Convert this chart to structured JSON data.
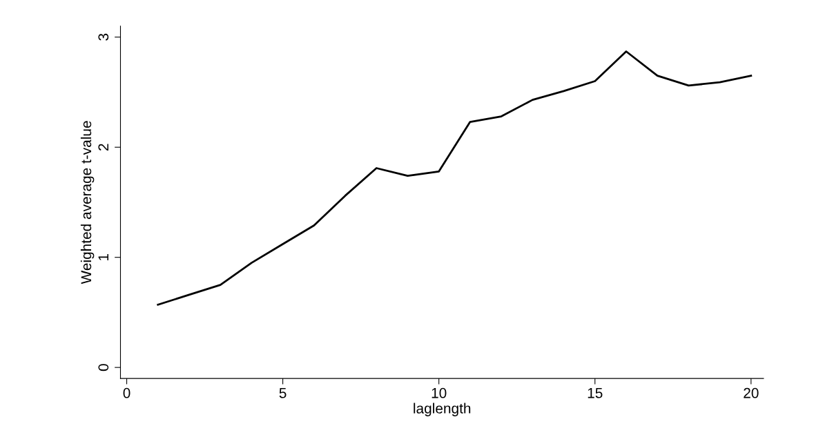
{
  "chart_data": {
    "type": "line",
    "xlabel": "laglength",
    "ylabel": "Weighted average t-value",
    "x": [
      1,
      2,
      3,
      4,
      5,
      6,
      7,
      8,
      9,
      10,
      11,
      12,
      13,
      14,
      15,
      16,
      17,
      18,
      19,
      20
    ],
    "series": [
      {
        "color": "#000000",
        "values": [
          0.57,
          0.66,
          0.75,
          0.95,
          1.12,
          1.29,
          1.56,
          1.81,
          1.74,
          1.78,
          2.23,
          2.28,
          2.43,
          2.51,
          2.6,
          2.87,
          2.65,
          2.56,
          2.59,
          2.65
        ]
      }
    ],
    "xlim": [
      -0.2,
      20.4
    ],
    "ylim": [
      -0.1,
      3.1
    ],
    "xticks": [
      0,
      5,
      10,
      15,
      20
    ],
    "yticks": [
      0,
      1,
      2,
      3
    ],
    "grid": false,
    "legend": false
  }
}
